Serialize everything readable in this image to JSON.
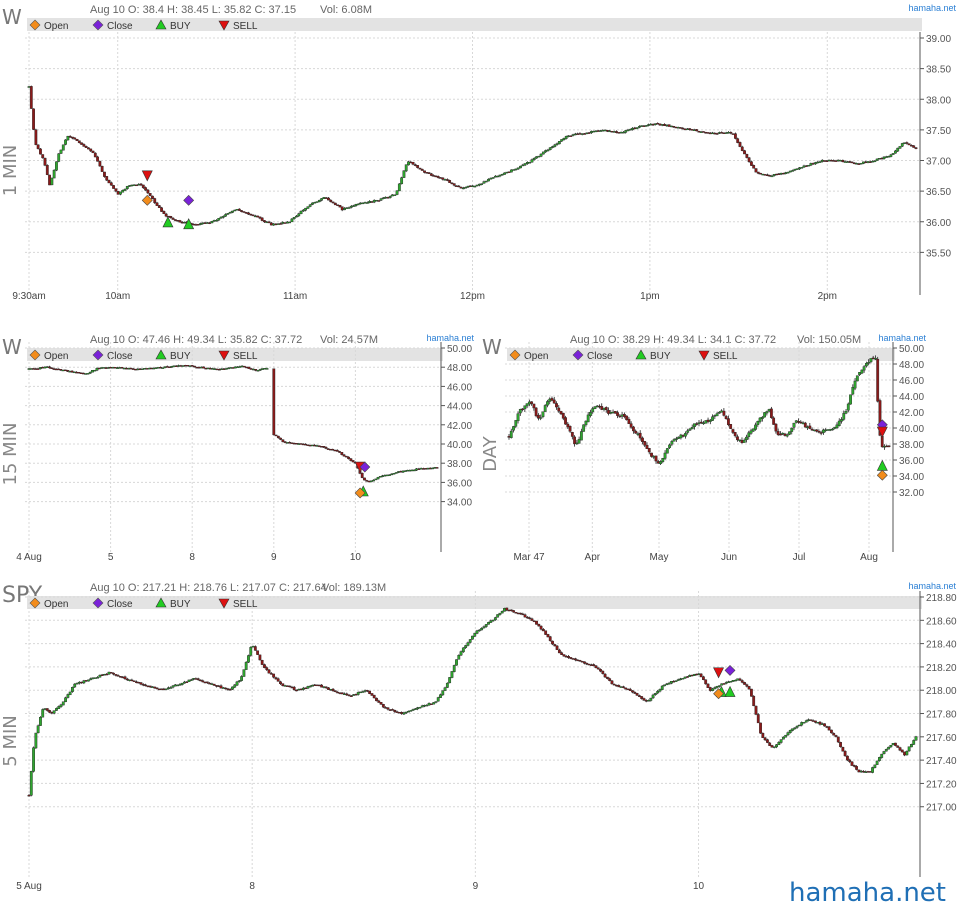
{
  "brand": "hamaha.net",
  "legend_items": [
    {
      "label": "Open",
      "marker": "diamond",
      "color": "#f28c1c"
    },
    {
      "label": "Close",
      "marker": "diamond",
      "color": "#7a22d8"
    },
    {
      "label": "BUY",
      "marker": "triangle-up",
      "color": "#22cc22"
    },
    {
      "label": "SELL",
      "marker": "triangle-down",
      "color": "#dd1111"
    }
  ],
  "chart_data": [
    {
      "type": "candlestick",
      "symbol": "W",
      "interval_label": "1 MIN",
      "summary": "Aug 10 O: 38.4 H: 38.45 L: 35.82 C: 37.15",
      "volume": "Vol: 6.08M",
      "watermark": "hamaha.net",
      "ylim": [
        35.0,
        39.0
      ],
      "yticks": [
        "39.00",
        "38.50",
        "38.00",
        "37.50",
        "37.00",
        "36.50",
        "36.00",
        "35.50"
      ],
      "xticks": [
        {
          "label": "9:30am",
          "t": 0
        },
        {
          "label": "10am",
          "t": 30
        },
        {
          "label": "11am",
          "t": 90
        },
        {
          "label": "12pm",
          "t": 150
        },
        {
          "label": "1pm",
          "t": 210
        },
        {
          "label": "2pm",
          "t": 270
        }
      ],
      "xmax": 300,
      "anchors": [
        [
          0,
          38.2
        ],
        [
          2,
          37.3
        ],
        [
          5,
          37.0
        ],
        [
          7,
          36.6
        ],
        [
          10,
          37.1
        ],
        [
          13,
          37.4
        ],
        [
          17,
          37.3
        ],
        [
          22,
          37.1
        ],
        [
          26,
          36.7
        ],
        [
          30,
          36.45
        ],
        [
          34,
          36.6
        ],
        [
          38,
          36.6
        ],
        [
          42,
          36.35
        ],
        [
          46,
          36.1
        ],
        [
          51,
          36.0
        ],
        [
          56,
          35.95
        ],
        [
          62,
          36.0
        ],
        [
          70,
          36.2
        ],
        [
          76,
          36.1
        ],
        [
          82,
          35.95
        ],
        [
          88,
          36.0
        ],
        [
          94,
          36.25
        ],
        [
          100,
          36.4
        ],
        [
          106,
          36.2
        ],
        [
          112,
          36.3
        ],
        [
          118,
          36.35
        ],
        [
          124,
          36.45
        ],
        [
          128,
          37.0
        ],
        [
          134,
          36.8
        ],
        [
          140,
          36.7
        ],
        [
          146,
          36.55
        ],
        [
          152,
          36.6
        ],
        [
          158,
          36.75
        ],
        [
          164,
          36.85
        ],
        [
          170,
          37.0
        ],
        [
          176,
          37.2
        ],
        [
          182,
          37.4
        ],
        [
          188,
          37.45
        ],
        [
          194,
          37.5
        ],
        [
          200,
          37.45
        ],
        [
          206,
          37.55
        ],
        [
          212,
          37.6
        ],
        [
          218,
          37.55
        ],
        [
          224,
          37.5
        ],
        [
          230,
          37.45
        ],
        [
          238,
          37.45
        ],
        [
          242,
          37.1
        ],
        [
          246,
          36.8
        ],
        [
          250,
          36.75
        ],
        [
          256,
          36.8
        ],
        [
          262,
          36.9
        ],
        [
          268,
          37.0
        ],
        [
          274,
          37.0
        ],
        [
          280,
          36.95
        ],
        [
          286,
          37.0
        ],
        [
          292,
          37.1
        ],
        [
          296,
          37.3
        ],
        [
          300,
          37.2
        ]
      ],
      "markers": [
        {
          "type": "SELL",
          "t": 40,
          "v": 36.75
        },
        {
          "type": "Open",
          "t": 40,
          "v": 36.35
        },
        {
          "type": "Close",
          "t": 54,
          "v": 36.35
        },
        {
          "type": "BUY",
          "t": 47,
          "v": 35.98
        },
        {
          "type": "BUY",
          "t": 54,
          "v": 35.95
        }
      ]
    },
    {
      "type": "candlestick",
      "symbol": "W",
      "interval_label": "15 MIN",
      "summary": "Aug 10 O: 47.46 H: 49.34 L: 35.82 C: 37.72",
      "volume": "Vol: 24.57M",
      "watermark": "hamaha.net",
      "ylim": [
        30.0,
        50.0
      ],
      "yticks": [
        "50.00",
        "48.00",
        "46.00",
        "44.00",
        "42.00",
        "40.00",
        "38.00",
        "36.00",
        "34.00"
      ],
      "xticks": [
        {
          "label": "4 Aug",
          "t": 0
        },
        {
          "label": "5",
          "t": 26
        },
        {
          "label": "8",
          "t": 52
        },
        {
          "label": "9",
          "t": 78
        },
        {
          "label": "10",
          "t": 104
        }
      ],
      "xmax": 130,
      "anchors": [
        [
          0,
          47.8
        ],
        [
          6,
          48.0
        ],
        [
          12,
          47.6
        ],
        [
          18,
          47.3
        ],
        [
          22,
          47.9
        ],
        [
          28,
          48.0
        ],
        [
          34,
          47.8
        ],
        [
          40,
          47.9
        ],
        [
          46,
          48.1
        ],
        [
          50,
          48.2
        ],
        [
          56,
          47.9
        ],
        [
          62,
          47.8
        ],
        [
          68,
          48.1
        ],
        [
          72,
          47.7
        ],
        [
          76,
          47.9
        ],
        [
          78,
          41.0
        ],
        [
          81,
          40.2
        ],
        [
          86,
          40.0
        ],
        [
          92,
          39.8
        ],
        [
          98,
          39.3
        ],
        [
          104,
          38.0
        ],
        [
          106,
          36.5
        ],
        [
          108,
          36.0
        ],
        [
          112,
          36.6
        ],
        [
          118,
          37.1
        ],
        [
          124,
          37.4
        ],
        [
          130,
          37.6
        ]
      ],
      "gaps": [
        [
          76,
          78
        ]
      ],
      "markers": [
        {
          "type": "SELL",
          "t": 105.5,
          "v": 37.6
        },
        {
          "type": "Close",
          "t": 107,
          "v": 37.6
        },
        {
          "type": "BUY",
          "t": 106.5,
          "v": 35.0
        },
        {
          "type": "Open",
          "t": 105.5,
          "v": 34.9
        }
      ]
    },
    {
      "type": "candlestick",
      "symbol": "W",
      "interval_label": "DAY",
      "summary": "Aug 10 O: 38.29 H: 49.34 L: 34.1 C: 37.72",
      "volume": "Vol: 150.05M",
      "watermark": "hamaha.net",
      "ylim": [
        26.0,
        50.0
      ],
      "yticks": [
        "50.00",
        "48.00",
        "46.00",
        "44.00",
        "42.00",
        "40.00",
        "38.00",
        "36.00",
        "34.00",
        "32.00"
      ],
      "xticks": [
        {
          "label": "Mar 47",
          "t": 6
        },
        {
          "label": "Apr",
          "t": 25
        },
        {
          "label": "May",
          "t": 45
        },
        {
          "label": "Jun",
          "t": 66
        },
        {
          "label": "Jul",
          "t": 87
        },
        {
          "label": "Aug",
          "t": 108
        }
      ],
      "xmax": 114,
      "anchors": [
        [
          0,
          39.0
        ],
        [
          3,
          42.0
        ],
        [
          6,
          43.5
        ],
        [
          9,
          41.0
        ],
        [
          12,
          44.0
        ],
        [
          15,
          42.0
        ],
        [
          18,
          40.0
        ],
        [
          20,
          37.5
        ],
        [
          23,
          41.0
        ],
        [
          26,
          43.0
        ],
        [
          30,
          42.0
        ],
        [
          34,
          41.5
        ],
        [
          38,
          39.5
        ],
        [
          42,
          37.0
        ],
        [
          45,
          35.5
        ],
        [
          48,
          38.0
        ],
        [
          52,
          39.0
        ],
        [
          56,
          40.5
        ],
        [
          60,
          41.0
        ],
        [
          64,
          42.0
        ],
        [
          66,
          40.5
        ],
        [
          68,
          39.0
        ],
        [
          70,
          38.0
        ],
        [
          74,
          40.5
        ],
        [
          78,
          42.5
        ],
        [
          80,
          39.5
        ],
        [
          83,
          39.0
        ],
        [
          86,
          41.0
        ],
        [
          90,
          40.0
        ],
        [
          94,
          39.5
        ],
        [
          98,
          40.0
        ],
        [
          101,
          42.0
        ],
        [
          104,
          46.0
        ],
        [
          106,
          47.5
        ],
        [
          108,
          48.5
        ],
        [
          110,
          48.5
        ],
        [
          111,
          40.0
        ],
        [
          112,
          37.5
        ]
      ],
      "markers": [
        {
          "type": "Close",
          "t": 112,
          "v": 40.4
        },
        {
          "type": "SELL",
          "t": 112,
          "v": 39.5
        },
        {
          "type": "BUY",
          "t": 112,
          "v": 35.2
        },
        {
          "type": "Open",
          "t": 112,
          "v": 34.1
        }
      ]
    },
    {
      "type": "candlestick",
      "symbol": "SPY",
      "interval_label": "5 MIN",
      "summary": "Aug 10 O: 217.21 H: 218.76 L: 217.07 C: 217.64",
      "volume": "Vol: 189.13M",
      "watermark": "hamaha.net",
      "ylim": [
        216.5,
        218.8
      ],
      "yticks": [
        "218.80",
        "218.60",
        "218.40",
        "218.20",
        "218.00",
        "217.80",
        "217.60",
        "217.40",
        "217.20",
        "217.00"
      ],
      "xticks": [
        {
          "label": "5 Aug",
          "t": 0
        },
        {
          "label": "8",
          "t": 78
        },
        {
          "label": "9",
          "t": 156
        },
        {
          "label": "10",
          "t": 234
        }
      ],
      "xmax": 310,
      "anchors": [
        [
          0,
          217.1
        ],
        [
          2,
          217.6
        ],
        [
          5,
          217.85
        ],
        [
          8,
          217.8
        ],
        [
          12,
          217.9
        ],
        [
          16,
          218.05
        ],
        [
          22,
          218.1
        ],
        [
          28,
          218.15
        ],
        [
          34,
          218.1
        ],
        [
          40,
          218.05
        ],
        [
          46,
          218.0
        ],
        [
          52,
          218.05
        ],
        [
          58,
          218.1
        ],
        [
          64,
          218.05
        ],
        [
          70,
          218.0
        ],
        [
          74,
          218.1
        ],
        [
          78,
          218.4
        ],
        [
          82,
          218.2
        ],
        [
          88,
          218.05
        ],
        [
          94,
          218.0
        ],
        [
          100,
          218.05
        ],
        [
          106,
          218.0
        ],
        [
          112,
          217.95
        ],
        [
          118,
          218.0
        ],
        [
          124,
          217.85
        ],
        [
          130,
          217.8
        ],
        [
          136,
          217.85
        ],
        [
          142,
          217.9
        ],
        [
          146,
          218.05
        ],
        [
          150,
          218.3
        ],
        [
          156,
          218.5
        ],
        [
          162,
          218.6
        ],
        [
          166,
          218.7
        ],
        [
          172,
          218.65
        ],
        [
          176,
          218.6
        ],
        [
          180,
          218.5
        ],
        [
          186,
          218.3
        ],
        [
          192,
          218.25
        ],
        [
          198,
          218.2
        ],
        [
          204,
          218.05
        ],
        [
          210,
          218.0
        ],
        [
          216,
          217.9
        ],
        [
          222,
          218.05
        ],
        [
          228,
          218.1
        ],
        [
          234,
          218.15
        ],
        [
          238,
          218.0
        ],
        [
          242,
          218.05
        ],
        [
          248,
          218.1
        ],
        [
          252,
          218.0
        ],
        [
          256,
          217.6
        ],
        [
          260,
          217.5
        ],
        [
          266,
          217.65
        ],
        [
          272,
          217.75
        ],
        [
          278,
          217.7
        ],
        [
          282,
          217.6
        ],
        [
          286,
          217.4
        ],
        [
          290,
          217.3
        ],
        [
          294,
          217.3
        ],
        [
          298,
          217.45
        ],
        [
          302,
          217.55
        ],
        [
          306,
          217.45
        ],
        [
          310,
          217.6
        ]
      ],
      "markers": [
        {
          "type": "SELL",
          "t": 241,
          "v": 218.15
        },
        {
          "type": "Close",
          "t": 245,
          "v": 218.17
        },
        {
          "type": "BUY",
          "t": 242,
          "v": 217.98
        },
        {
          "type": "BUY",
          "t": 245,
          "v": 217.98
        },
        {
          "type": "Open",
          "t": 241,
          "v": 217.97
        }
      ]
    }
  ]
}
